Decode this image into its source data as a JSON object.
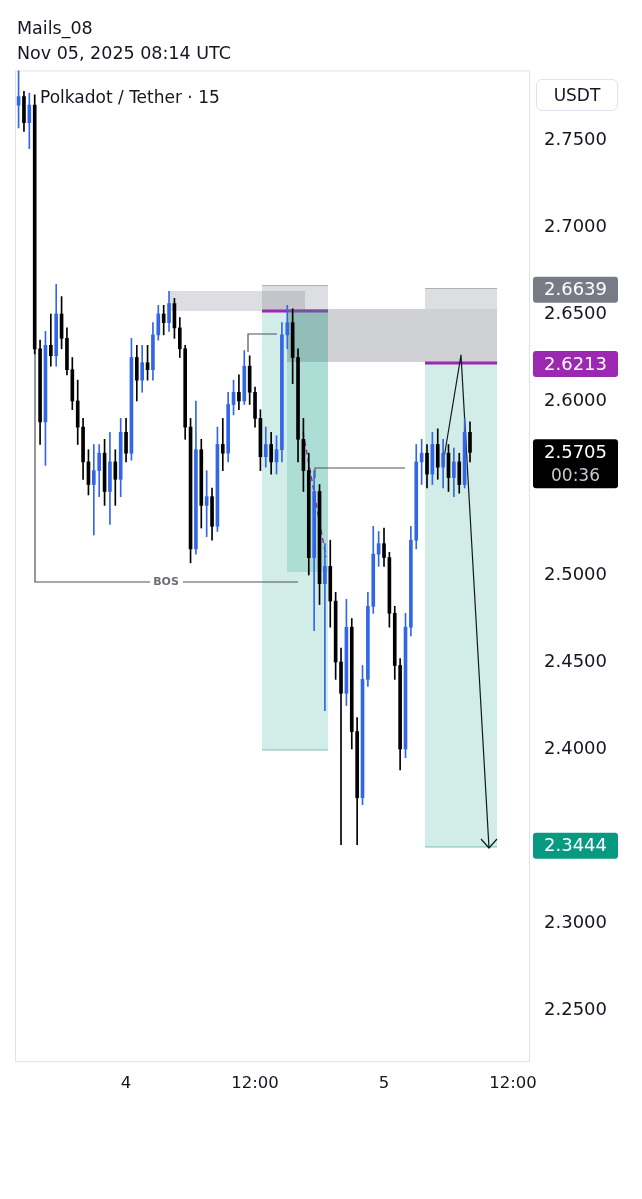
{
  "chart_data": {
    "type": "candlestick",
    "title": "Polkadot / Tether · 15",
    "ylabel": "USDT",
    "annotations": [
      "Mails_08",
      "Nov 05, 2025 08:14 UTC",
      "2.5705",
      "00:36",
      "BOS"
    ],
    "x": [
      "2025-11-03T14:00",
      "2025-11-03T14:30",
      "2025-11-03T15:00",
      "2025-11-03T15:30",
      "2025-11-03T16:00",
      "2025-11-03T16:30",
      "2025-11-03T17:00",
      "2025-11-03T17:30",
      "2025-11-03T18:00",
      "2025-11-03T18:30",
      "2025-11-03T19:00",
      "2025-11-03T19:30",
      "2025-11-03T20:00",
      "2025-11-03T20:30",
      "2025-11-03T21:00",
      "2025-11-03T21:30",
      "2025-11-03T22:00",
      "2025-11-03T22:30",
      "2025-11-03T23:00",
      "2025-11-03T23:30",
      "2025-11-04T00:00",
      "2025-11-04T00:30",
      "2025-11-04T01:00",
      "2025-11-04T01:30",
      "2025-11-04T02:00",
      "2025-11-04T02:30",
      "2025-11-04T03:00",
      "2025-11-04T03:30",
      "2025-11-04T04:00",
      "2025-11-04T04:30",
      "2025-11-04T05:00",
      "2025-11-04T05:30",
      "2025-11-04T06:00",
      "2025-11-04T06:30",
      "2025-11-04T07:00",
      "2025-11-04T07:30",
      "2025-11-04T08:00",
      "2025-11-04T08:30",
      "2025-11-04T09:00",
      "2025-11-04T09:30",
      "2025-11-04T10:00",
      "2025-11-04T10:30",
      "2025-11-04T11:00",
      "2025-11-04T11:30",
      "2025-11-04T12:00",
      "2025-11-04T12:30",
      "2025-11-04T13:00",
      "2025-11-04T13:30",
      "2025-11-04T14:00",
      "2025-11-04T14:30",
      "2025-11-04T15:00",
      "2025-11-04T15:30",
      "2025-11-04T16:00",
      "2025-11-04T16:30",
      "2025-11-04T17:00",
      "2025-11-04T17:30",
      "2025-11-04T18:00",
      "2025-11-04T18:30",
      "2025-11-04T19:00",
      "2025-11-04T19:30",
      "2025-11-04T20:00",
      "2025-11-04T20:30",
      "2025-11-04T21:00",
      "2025-11-04T21:30",
      "2025-11-04T22:00",
      "2025-11-04T22:30",
      "2025-11-04T23:00",
      "2025-11-04T23:30",
      "2025-11-05T00:00",
      "2025-11-05T00:30",
      "2025-11-05T01:00",
      "2025-11-05T01:30",
      "2025-11-05T02:00",
      "2025-11-05T02:30",
      "2025-11-05T03:00",
      "2025-11-05T03:30",
      "2025-11-05T04:00",
      "2025-11-05T04:30",
      "2025-11-05T05:00",
      "2025-11-05T05:30",
      "2025-11-05T06:00",
      "2025-11-05T06:30",
      "2025-11-05T07:00",
      "2025-11-05T07:30",
      "2025-11-05T08:00"
    ],
    "ohlc": [
      [
        2.77,
        2.79,
        2.757,
        2.775
      ],
      [
        2.775,
        2.778,
        2.755,
        2.76
      ],
      [
        2.76,
        2.777,
        2.745,
        2.77
      ],
      [
        2.77,
        2.776,
        2.627,
        2.63
      ],
      [
        2.63,
        2.635,
        2.575,
        2.588
      ],
      [
        2.588,
        2.64,
        2.563,
        2.632
      ],
      [
        2.632,
        2.65,
        2.62,
        2.626
      ],
      [
        2.626,
        2.667,
        2.62,
        2.65
      ],
      [
        2.65,
        2.66,
        2.63,
        2.636
      ],
      [
        2.636,
        2.642,
        2.615,
        2.618
      ],
      [
        2.618,
        2.625,
        2.595,
        2.6
      ],
      [
        2.6,
        2.612,
        2.575,
        2.585
      ],
      [
        2.585,
        2.59,
        2.555,
        2.565
      ],
      [
        2.565,
        2.572,
        2.546,
        2.552
      ],
      [
        2.552,
        2.575,
        2.523,
        2.56
      ],
      [
        2.56,
        2.575,
        2.545,
        2.57
      ],
      [
        2.57,
        2.578,
        2.54,
        2.548
      ],
      [
        2.548,
        2.582,
        2.529,
        2.565
      ],
      [
        2.565,
        2.572,
        2.54,
        2.555
      ],
      [
        2.555,
        2.59,
        2.545,
        2.582
      ],
      [
        2.582,
        2.59,
        2.565,
        2.57
      ],
      [
        2.57,
        2.636,
        2.566,
        2.625
      ],
      [
        2.625,
        2.632,
        2.6,
        2.612
      ],
      [
        2.612,
        2.632,
        2.605,
        2.622
      ],
      [
        2.622,
        2.632,
        2.612,
        2.618
      ],
      [
        2.618,
        2.645,
        2.612,
        2.638
      ],
      [
        2.638,
        2.655,
        2.635,
        2.65
      ],
      [
        2.65,
        2.655,
        2.638,
        2.645
      ],
      [
        2.645,
        2.663,
        2.64,
        2.656
      ],
      [
        2.656,
        2.659,
        2.636,
        2.642
      ],
      [
        2.642,
        2.648,
        2.625,
        2.63
      ],
      [
        2.63,
        2.632,
        2.578,
        2.585
      ],
      [
        2.585,
        2.59,
        2.507,
        2.515
      ],
      [
        2.515,
        2.6,
        2.512,
        2.572
      ],
      [
        2.572,
        2.578,
        2.527,
        2.54
      ],
      [
        2.54,
        2.56,
        2.522,
        2.545
      ],
      [
        2.545,
        2.55,
        2.52,
        2.528
      ],
      [
        2.528,
        2.585,
        2.525,
        2.575
      ],
      [
        2.575,
        2.59,
        2.56,
        2.57
      ],
      [
        2.57,
        2.605,
        2.565,
        2.598
      ],
      [
        2.598,
        2.612,
        2.592,
        2.605
      ],
      [
        2.605,
        2.615,
        2.595,
        2.6
      ],
      [
        2.6,
        2.629,
        2.598,
        2.62
      ],
      [
        2.62,
        2.626,
        2.598,
        2.605
      ],
      [
        2.605,
        2.608,
        2.585,
        2.59
      ],
      [
        2.59,
        2.595,
        2.56,
        2.568
      ],
      [
        2.568,
        2.585,
        2.562,
        2.575
      ],
      [
        2.575,
        2.582,
        2.558,
        2.565
      ],
      [
        2.565,
        2.58,
        2.558,
        2.572
      ],
      [
        2.572,
        2.645,
        2.565,
        2.638
      ],
      [
        2.638,
        2.655,
        2.63,
        2.645
      ],
      [
        2.645,
        2.653,
        2.61,
        2.625
      ],
      [
        2.625,
        2.63,
        2.565,
        2.578
      ],
      [
        2.578,
        2.59,
        2.548,
        2.56
      ],
      [
        2.56,
        2.57,
        2.5,
        2.51
      ],
      [
        2.51,
        2.56,
        2.468,
        2.548
      ],
      [
        2.548,
        2.552,
        2.483,
        2.495
      ],
      [
        2.495,
        2.518,
        2.422,
        2.505
      ],
      [
        2.505,
        2.52,
        2.47,
        2.485
      ],
      [
        2.485,
        2.49,
        2.44,
        2.45
      ],
      [
        2.45,
        2.458,
        2.345,
        2.432
      ],
      [
        2.432,
        2.486,
        2.425,
        2.47
      ],
      [
        2.47,
        2.475,
        2.4,
        2.41
      ],
      [
        2.41,
        2.418,
        2.345,
        2.372
      ],
      [
        2.372,
        2.448,
        2.368,
        2.44
      ],
      [
        2.44,
        2.49,
        2.436,
        2.482
      ],
      [
        2.482,
        2.528,
        2.478,
        2.512
      ],
      [
        2.512,
        2.525,
        2.505,
        2.518
      ],
      [
        2.518,
        2.527,
        2.505,
        2.51
      ],
      [
        2.51,
        2.513,
        2.47,
        2.478
      ],
      [
        2.478,
        2.482,
        2.44,
        2.448
      ],
      [
        2.448,
        2.452,
        2.388,
        2.4
      ],
      [
        2.4,
        2.478,
        2.395,
        2.47
      ],
      [
        2.47,
        2.528,
        2.465,
        2.52
      ],
      [
        2.52,
        2.575,
        2.515,
        2.565
      ],
      [
        2.565,
        2.578,
        2.552,
        2.57
      ],
      [
        2.57,
        2.575,
        2.55,
        2.558
      ],
      [
        2.558,
        2.582,
        2.552,
        2.575
      ],
      [
        2.575,
        2.584,
        2.555,
        2.562
      ],
      [
        2.562,
        2.578,
        2.55,
        2.57
      ],
      [
        2.57,
        2.575,
        2.548,
        2.556
      ],
      [
        2.556,
        2.573,
        2.545,
        2.565
      ],
      [
        2.565,
        2.57,
        2.547,
        2.552
      ],
      [
        2.552,
        2.59,
        2.55,
        2.582
      ],
      [
        2.582,
        2.588,
        2.565,
        2.5705
      ]
    ],
    "colors": [
      "#3366e6",
      "#000000",
      "#3366e6",
      "#000000",
      "#000000",
      "#3366e6",
      "#000000",
      "#3366e6",
      "#000000",
      "#000000",
      "#000000",
      "#000000",
      "#000000",
      "#000000",
      "#3366e6",
      "#3366e6",
      "#000000",
      "#3366e6",
      "#000000",
      "#3366e6",
      "#000000",
      "#3366e6",
      "#000000",
      "#3366e6",
      "#000000",
      "#3366e6",
      "#3366e6",
      "#000000",
      "#3366e6",
      "#000000",
      "#000000",
      "#000000",
      "#000000",
      "#3366e6",
      "#000000",
      "#3366e6",
      "#000000",
      "#3366e6",
      "#000000",
      "#3366e6",
      "#3366e6",
      "#000000",
      "#3366e6",
      "#000000",
      "#000000",
      "#000000",
      "#3366e6",
      "#000000",
      "#3366e6",
      "#3366e6",
      "#3366e6",
      "#000000",
      "#000000",
      "#000000",
      "#000000",
      "#3366e6",
      "#000000",
      "#3366e6",
      "#000000",
      "#000000",
      "#000000",
      "#3366e6",
      "#000000",
      "#000000",
      "#3366e6",
      "#3366e6",
      "#3366e6",
      "#3366e6",
      "#000000",
      "#000000",
      "#000000",
      "#000000",
      "#3366e6",
      "#3366e6",
      "#3366e6",
      "#3366e6",
      "#000000",
      "#3366e6",
      "#000000",
      "#3366e6",
      "#000000",
      "#3366e6",
      "#000000",
      "#3366e6",
      "#000000"
    ],
    "xlim": [
      "2025-11-03T13:40",
      "2025-11-05T13:35"
    ],
    "xticks": [
      {
        "value": "2025-11-04",
        "label": "4"
      },
      {
        "value": "2025-11-04T12:00",
        "label": "12:00"
      },
      {
        "value": "2025-11-05",
        "label": "5"
      },
      {
        "value": "2025-11-05T12:00",
        "label": "12:00"
      }
    ],
    "ylim": [
      2.22,
      2.79
    ],
    "yticks": [
      {
        "value": 2.25,
        "label": "2.2500"
      },
      {
        "value": 2.3,
        "label": "2.3000"
      },
      {
        "value": 2.4,
        "label": "2.4000"
      },
      {
        "value": 2.45,
        "label": "2.4500"
      },
      {
        "value": 2.5,
        "label": "2.5000"
      },
      {
        "value": 2.6,
        "label": "2.6000"
      },
      {
        "value": 2.65,
        "label": "2.6500"
      },
      {
        "value": 2.7,
        "label": "2.7000"
      },
      {
        "value": 2.75,
        "label": "2.7500"
      }
    ],
    "ref_lines": [
      {
        "axis": "y",
        "value": 2.6639,
        "label": "2.6639",
        "color": "#787b86"
      },
      {
        "axis": "y",
        "value": 2.6213,
        "label": "2.6213",
        "color": "#9c27b0"
      },
      {
        "axis": "y",
        "value": 2.3444,
        "label": "2.3444",
        "color": "#089981"
      }
    ],
    "grid": false
  }
}
